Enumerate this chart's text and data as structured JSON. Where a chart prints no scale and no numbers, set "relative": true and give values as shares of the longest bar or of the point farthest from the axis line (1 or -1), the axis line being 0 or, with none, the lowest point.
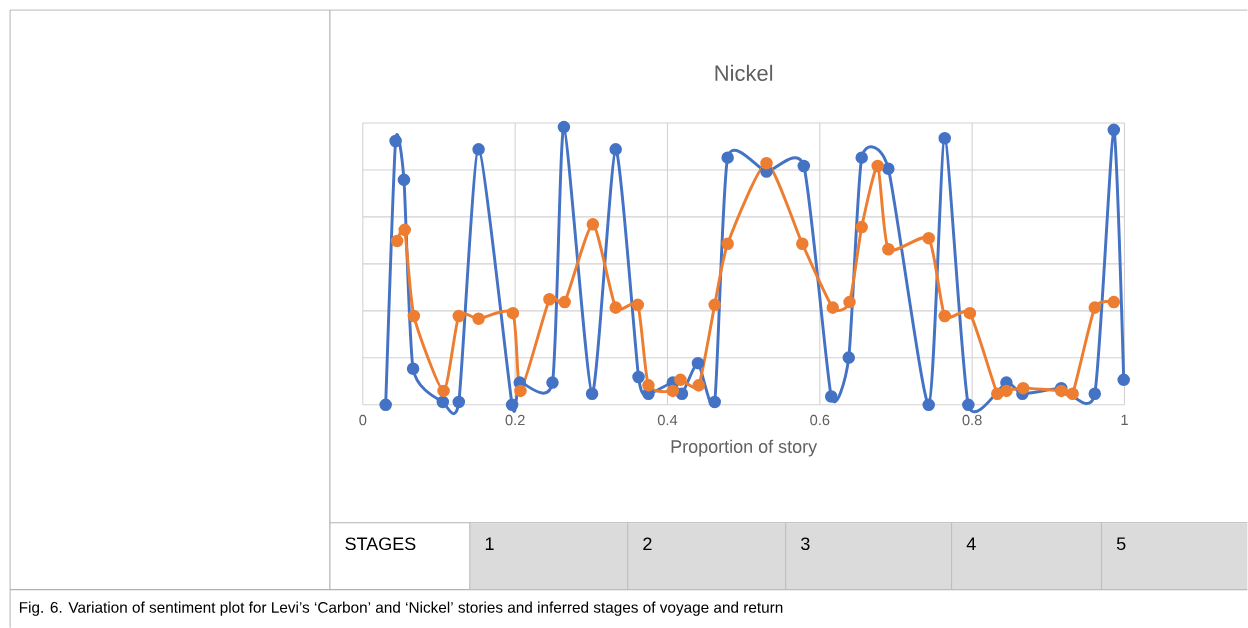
{
  "chart_data": {
    "type": "line",
    "title": "Nickel",
    "xlabel": "Proportion of story",
    "relative": true,
    "xlim": [
      0,
      1
    ],
    "xticks": [
      0,
      0.2,
      0.4,
      0.6,
      0.8,
      1
    ],
    "grid": true,
    "marker": "circle",
    "line_style": "solid",
    "series": [
      {
        "color": "#4472c4",
        "x": [
          0.03,
          0.043,
          0.054,
          0.066,
          0.105,
          0.126,
          0.152,
          0.196,
          0.206,
          0.249,
          0.264,
          0.301,
          0.332,
          0.362,
          0.375,
          0.407,
          0.419,
          0.44,
          0.462,
          0.479,
          0.53,
          0.579,
          0.615,
          0.638,
          0.655,
          0.69,
          0.743,
          0.764,
          0.795,
          0.845,
          0.866,
          0.917,
          0.961,
          0.986,
          0.999
        ],
        "values": [
          0.0,
          0.95,
          0.81,
          0.13,
          0.01,
          0.01,
          0.92,
          0.0,
          0.08,
          0.08,
          1.0,
          0.04,
          0.92,
          0.1,
          0.04,
          0.08,
          0.04,
          0.15,
          0.01,
          0.89,
          0.84,
          0.86,
          0.03,
          0.17,
          0.89,
          0.85,
          0.0,
          0.96,
          0.0,
          0.08,
          0.04,
          0.06,
          0.04,
          0.99,
          0.09
        ]
      },
      {
        "color": "#ed7d31",
        "x": [
          0.045,
          0.055,
          0.067,
          0.106,
          0.126,
          0.152,
          0.197,
          0.207,
          0.245,
          0.265,
          0.302,
          0.332,
          0.361,
          0.375,
          0.407,
          0.417,
          0.441,
          0.462,
          0.479,
          0.53,
          0.577,
          0.617,
          0.639,
          0.655,
          0.676,
          0.69,
          0.743,
          0.764,
          0.797,
          0.833,
          0.845,
          0.867,
          0.917,
          0.932,
          0.961,
          0.986
        ],
        "values": [
          0.59,
          0.63,
          0.32,
          0.05,
          0.32,
          0.31,
          0.33,
          0.05,
          0.38,
          0.37,
          0.65,
          0.35,
          0.36,
          0.07,
          0.05,
          0.09,
          0.07,
          0.36,
          0.58,
          0.87,
          0.58,
          0.35,
          0.37,
          0.64,
          0.86,
          0.56,
          0.6,
          0.32,
          0.33,
          0.04,
          0.05,
          0.06,
          0.05,
          0.04,
          0.35,
          0.37
        ]
      }
    ],
    "annotations": [
      "STAGES",
      "1",
      "2",
      "3",
      "4",
      "5",
      "Fig. 6. Variation of sentiment plot for Levi’s ‘Carbon’ and ‘Nickel’ stories and inferred stages of voyage and return"
    ]
  }
}
